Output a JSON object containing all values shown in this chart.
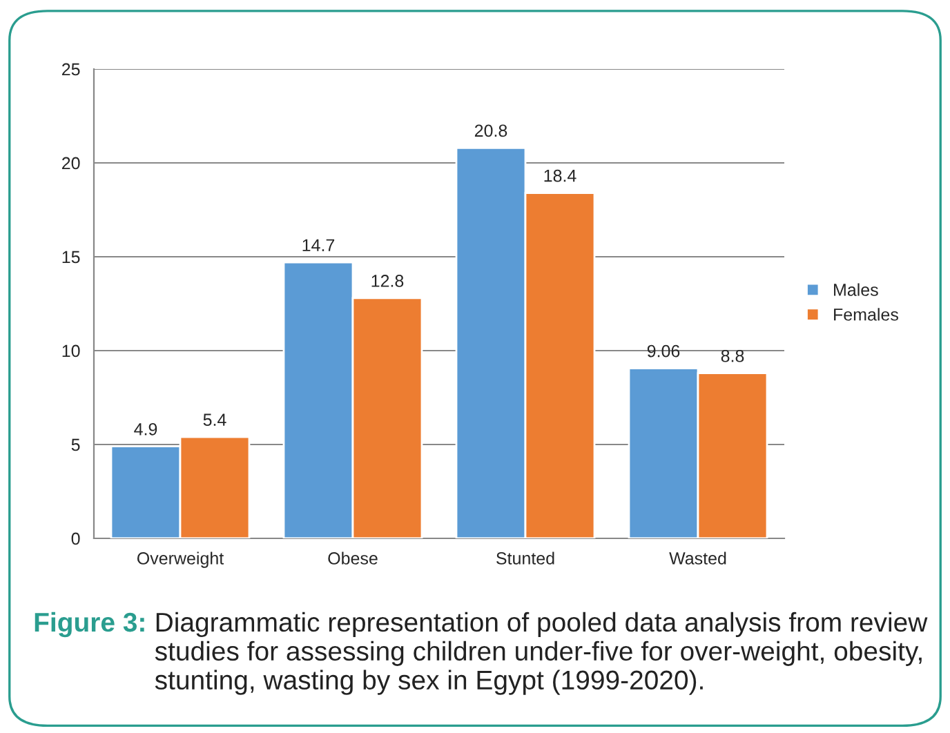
{
  "chart_data": {
    "type": "bar",
    "categories": [
      "Overweight",
      "Obese",
      "Stunted",
      "Wasted"
    ],
    "series": [
      {
        "name": "Males",
        "color": "#5b9bd5",
        "values": [
          4.9,
          14.7,
          20.8,
          9.06
        ]
      },
      {
        "name": "Females",
        "color": "#ed7d31",
        "values": [
          5.4,
          12.8,
          18.4,
          8.8
        ]
      }
    ],
    "ylim": [
      0,
      25
    ],
    "yticks": [
      0,
      5,
      10,
      15,
      20,
      25
    ],
    "grid": "y",
    "legend": "right",
    "data_labels": true,
    "annotations": [
      "Figure 3:",
      "Diagrammatic representation of pooled data analysis from review studies for assessing children under-five for over-weight, obesity, stunting, wasting by sex in Egypt (1999-2020)."
    ]
  }
}
